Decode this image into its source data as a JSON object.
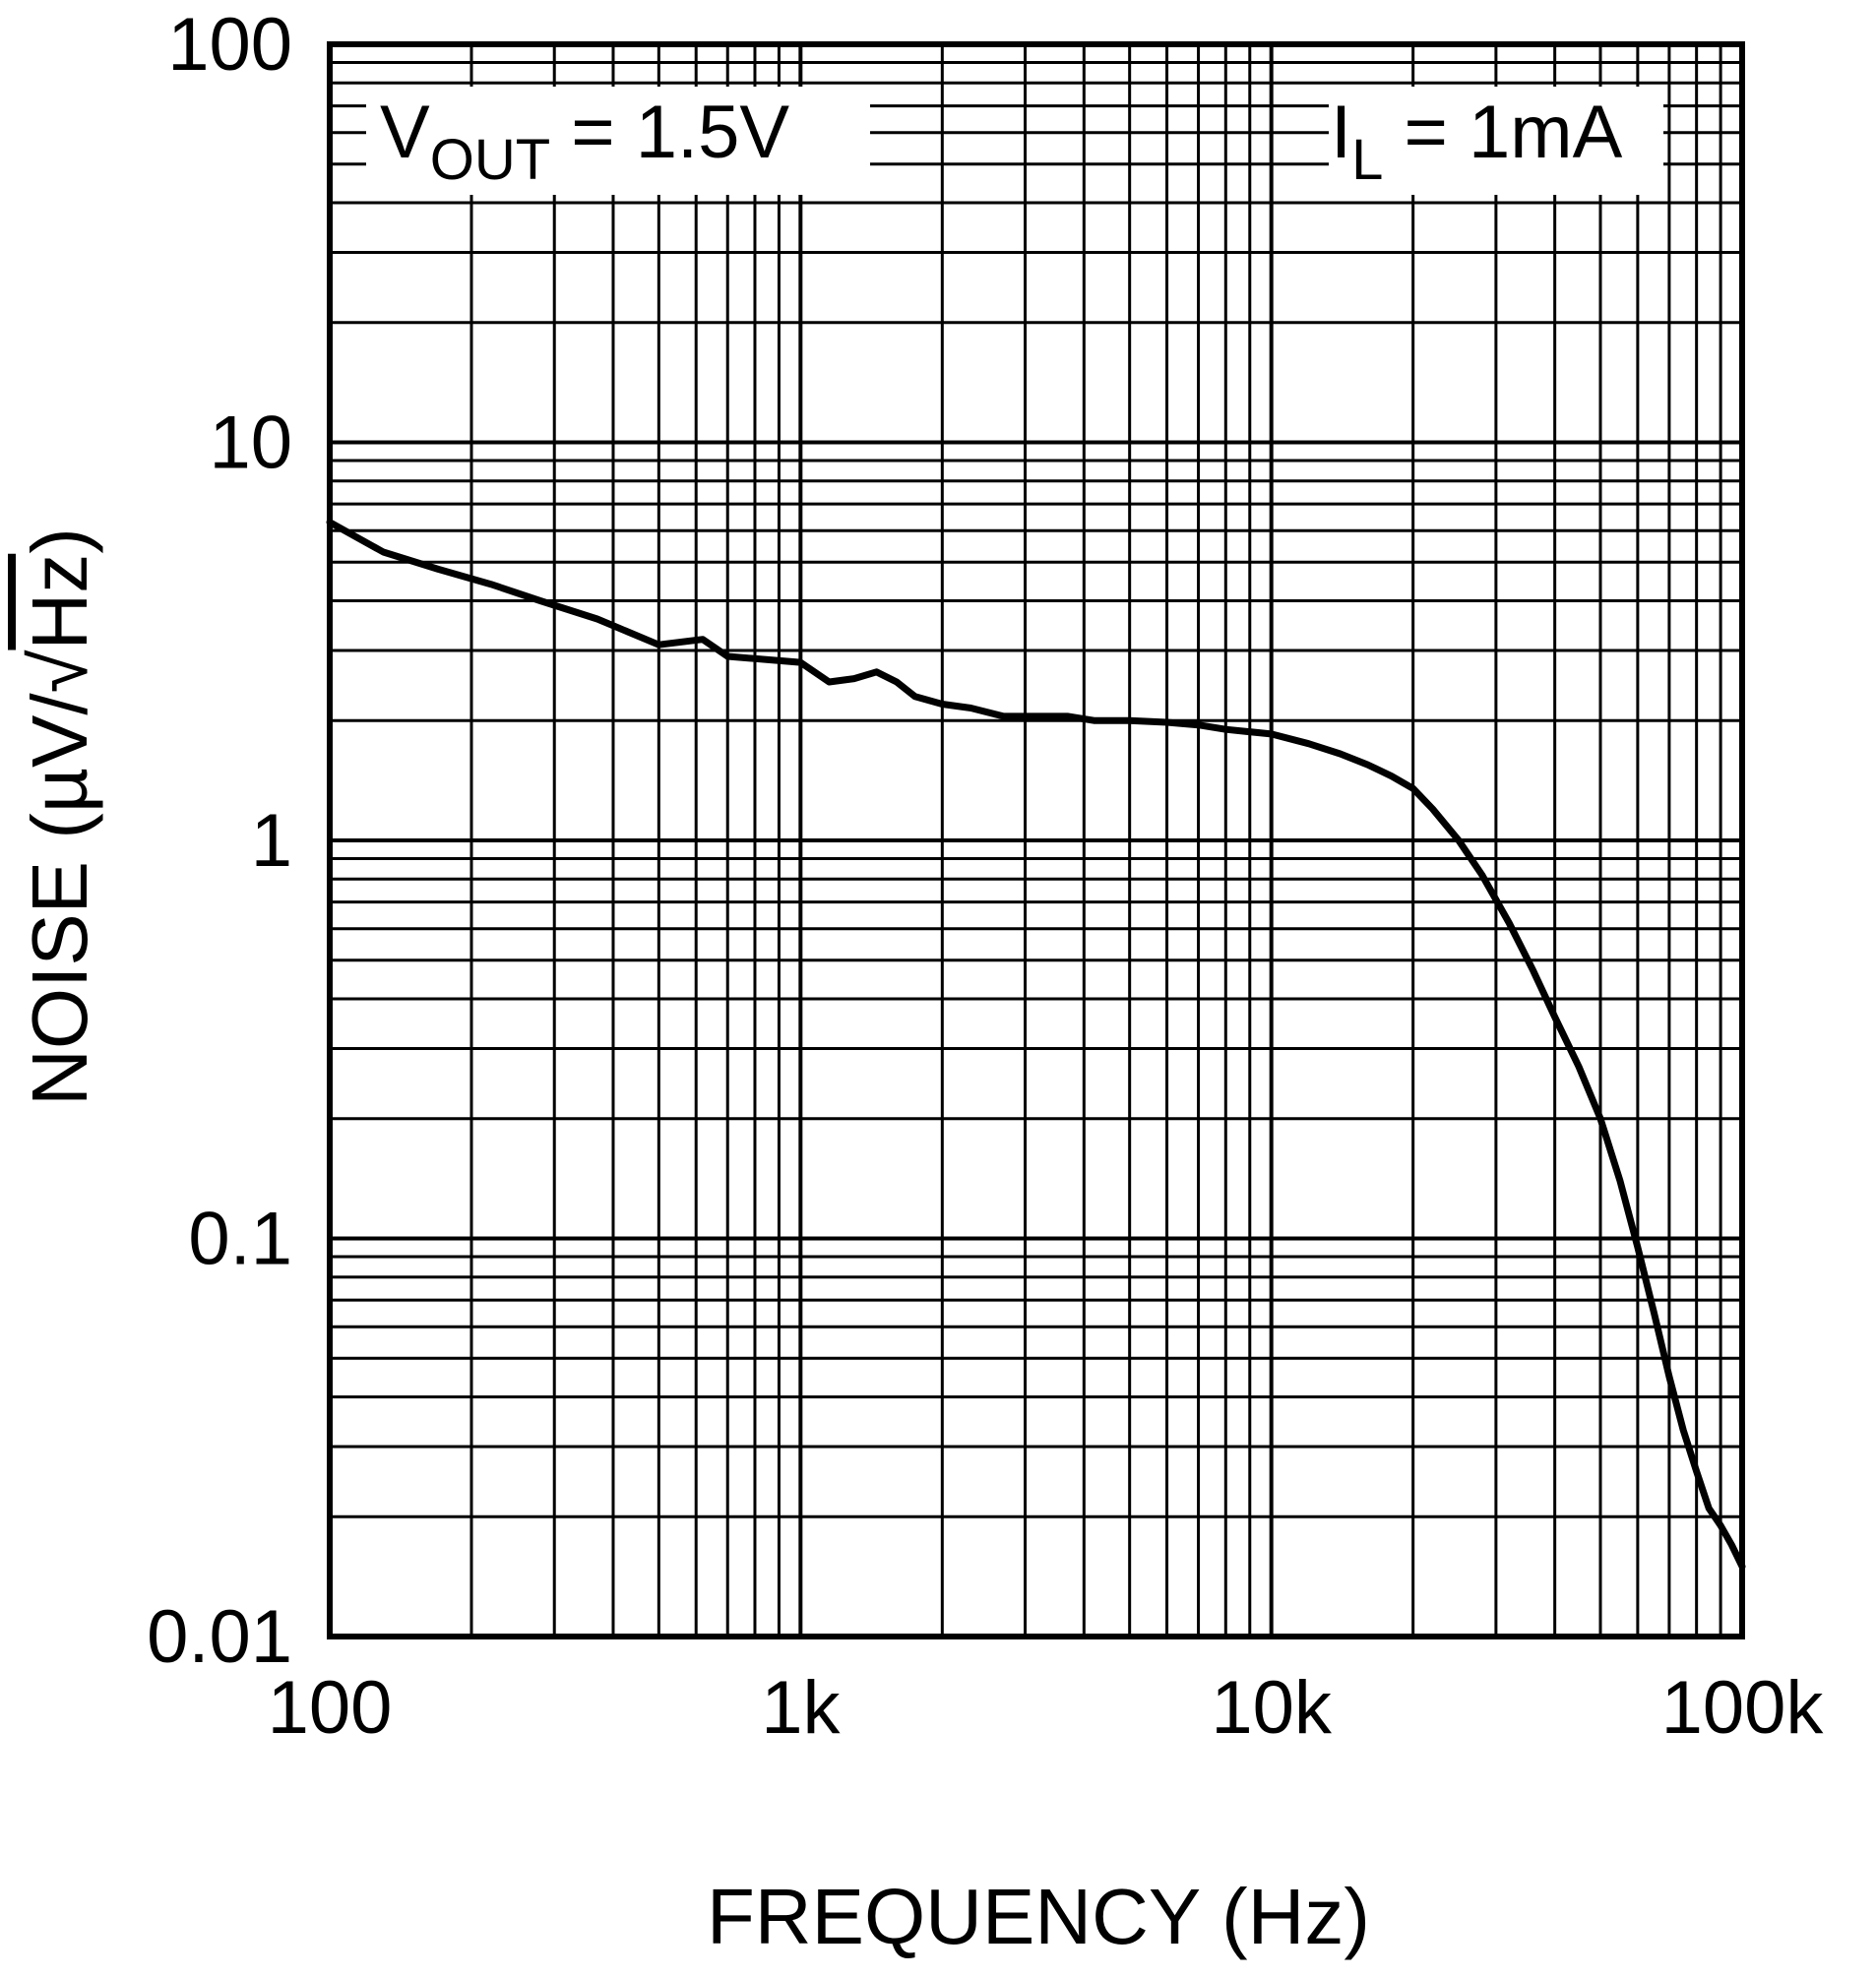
{
  "chart_data": {
    "type": "line",
    "xscale": "log",
    "yscale": "log",
    "xlim": [
      100,
      100000
    ],
    "ylim": [
      0.01,
      100
    ],
    "xlabel": "FREQUENCY (Hz)",
    "ylabel": {
      "prefix": "NOISE (µV/",
      "radical": "√",
      "radicand": "Hz",
      "suffix": ")"
    },
    "x_ticks": [
      {
        "value": 100,
        "label": "100"
      },
      {
        "value": 1000,
        "label": "1k"
      },
      {
        "value": 10000,
        "label": "10k"
      },
      {
        "value": 100000,
        "label": "100k"
      }
    ],
    "y_ticks": [
      {
        "value": 100,
        "label": "100"
      },
      {
        "value": 10,
        "label": "10"
      },
      {
        "value": 1,
        "label": "1"
      },
      {
        "value": 0.1,
        "label": "0.1"
      },
      {
        "value": 0.01,
        "label": "0.01"
      }
    ],
    "annotations": [
      {
        "id": "vout",
        "main": "V",
        "sub": "OUT",
        "rest": " = 1.5V",
        "position": "top-left"
      },
      {
        "id": "il",
        "main": "I",
        "sub": "L",
        "rest": " = 1mA",
        "position": "top-right"
      }
    ],
    "series": [
      {
        "name": "Noise",
        "color": "#000000",
        "x": [
          100,
          130,
          170,
          220,
          280,
          370,
          500,
          620,
          700,
          1000,
          1150,
          1300,
          1450,
          1600,
          1750,
          2000,
          2300,
          2700,
          3000,
          3300,
          3700,
          4200,
          5000,
          6000,
          7000,
          8000,
          10000,
          12000,
          14000,
          16000,
          18000,
          20000,
          22000,
          25000,
          28000,
          32000,
          36000,
          40000,
          45000,
          50000,
          55000,
          60000,
          65000,
          70000,
          75000,
          80000,
          85000,
          90000,
          95000,
          100000
        ],
        "y": [
          6.3,
          5.3,
          4.8,
          4.4,
          4.0,
          3.6,
          3.1,
          3.2,
          2.9,
          2.8,
          2.5,
          2.55,
          2.65,
          2.5,
          2.3,
          2.2,
          2.15,
          2.05,
          2.05,
          2.05,
          2.05,
          2.0,
          2.0,
          1.98,
          1.95,
          1.9,
          1.85,
          1.75,
          1.65,
          1.55,
          1.45,
          1.35,
          1.2,
          1.0,
          0.82,
          0.62,
          0.47,
          0.36,
          0.27,
          0.2,
          0.14,
          0.095,
          0.065,
          0.045,
          0.033,
          0.026,
          0.021,
          0.019,
          0.017,
          0.015
        ]
      }
    ]
  }
}
